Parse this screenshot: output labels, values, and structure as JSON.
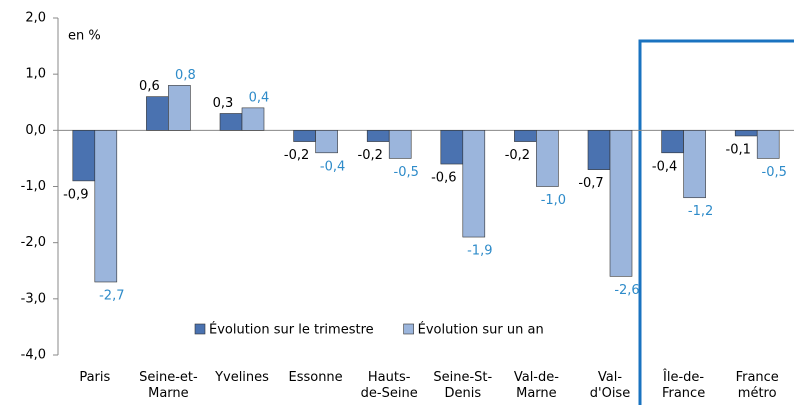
{
  "chart_data": {
    "type": "bar",
    "annotation": "en %",
    "categories": [
      "Paris",
      "Seine-et-\nMarne",
      "Yvelines",
      "Essonne",
      "Hauts-\nde-Seine",
      "Seine-St-\nDenis",
      "Val-de-\nMarne",
      "Val-\nd'Oise",
      "Île-de-\nFrance",
      "France\nmétro"
    ],
    "series": [
      {
        "name": "Évolution sur le trimestre",
        "color": "#4a72b0",
        "label_color": "#000000",
        "values": [
          -0.9,
          0.6,
          0.3,
          -0.2,
          -0.2,
          -0.6,
          -0.2,
          -0.7,
          -0.4,
          -0.1
        ],
        "value_labels": [
          "-0,9",
          "0,6",
          "0,3",
          "-0,2",
          "-0,2",
          "-0,6",
          "-0,2",
          "-0,7",
          "-0,4",
          "-0,1"
        ]
      },
      {
        "name": "Évolution sur un an",
        "color": "#9bb5dc",
        "label_color": "#2e8bc9",
        "values": [
          -2.7,
          0.8,
          0.4,
          -0.4,
          -0.5,
          -1.9,
          -1.0,
          -2.6,
          -1.2,
          -0.5
        ],
        "value_labels": [
          "-2,7",
          "0,8",
          "0,4",
          "-0,4",
          "-0,5",
          "-1,9",
          "-1,0",
          "-2,6",
          "-1,2",
          "-0,5"
        ]
      }
    ],
    "ylim": [
      -4,
      2
    ],
    "yticks": [
      {
        "value": -4,
        "label": "-4,0"
      },
      {
        "value": -3,
        "label": "-3,0"
      },
      {
        "value": -2,
        "label": "-2,0"
      },
      {
        "value": -1,
        "label": "-1,0"
      },
      {
        "value": 0,
        "label": "0,0"
      },
      {
        "value": 1,
        "label": "1,0"
      },
      {
        "value": 2,
        "label": "2,0"
      }
    ],
    "grid": false
  }
}
